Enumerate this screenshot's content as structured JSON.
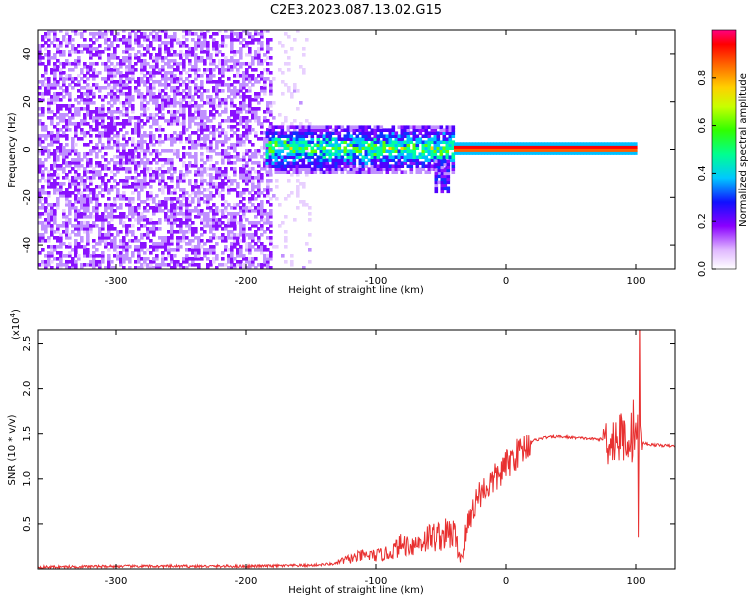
{
  "title": "C2E3.2023.087.13.02.G15",
  "chart_data": [
    {
      "type": "heatmap",
      "xlabel": "Height of straight line (km)",
      "ylabel": "Frequency (Hz)",
      "xlim": [
        -360,
        130
      ],
      "ylim": [
        -50,
        50
      ],
      "xticks": [
        -300,
        -200,
        -100,
        0,
        100
      ],
      "yticks": [
        -40,
        -20,
        0,
        20,
        40
      ],
      "colorbar": {
        "label": "Normalized spectral amplitude",
        "ticks": [
          0.0,
          0.2,
          0.4,
          0.6,
          0.8
        ],
        "range": [
          0,
          1
        ]
      },
      "regions": [
        {
          "x_range": [
            -360,
            -180
          ],
          "freq_range": [
            -50,
            50
          ],
          "amplitude": 0.1,
          "description": "broadband noise"
        },
        {
          "x_range": [
            -180,
            -150
          ],
          "freq_range": [
            -50,
            50
          ],
          "amplitude": 0.03,
          "description": "sparse noise"
        },
        {
          "x_range": [
            -185,
            -40
          ],
          "freq_range": [
            -10,
            10
          ],
          "amplitude": 0.3,
          "description": "signal band"
        },
        {
          "x_range": [
            -55,
            -45
          ],
          "freq_range": [
            -18,
            -5
          ],
          "amplitude": 0.2,
          "description": "signal excursion"
        },
        {
          "x_range": [
            -40,
            100
          ],
          "freq_range": [
            -2,
            2
          ],
          "amplitude": 1.0,
          "description": "strong carrier"
        }
      ]
    },
    {
      "type": "line",
      "xlabel": "Height of straight line (km)",
      "ylabel": "SNR (10 * v/v)",
      "y_multiplier": "(x10^4)",
      "xlim": [
        -360,
        130
      ],
      "ylim": [
        0,
        2.65
      ],
      "xticks": [
        -300,
        -200,
        -100,
        0,
        100
      ],
      "yticks": [
        0.5,
        1.0,
        1.5,
        2.0,
        2.5
      ],
      "color": "#e83030",
      "x": [
        -360,
        -300,
        -250,
        -200,
        -150,
        -130,
        -110,
        -100,
        -90,
        -80,
        -70,
        -60,
        -50,
        -40,
        -35,
        -30,
        -25,
        -20,
        -15,
        -10,
        -5,
        0,
        10,
        20,
        30,
        40,
        50,
        60,
        70,
        80,
        85,
        90,
        95,
        100,
        103,
        105,
        110,
        120,
        130
      ],
      "y": [
        0.02,
        0.03,
        0.03,
        0.03,
        0.04,
        0.06,
        0.12,
        0.12,
        0.14,
        0.22,
        0.22,
        0.28,
        0.3,
        0.32,
        0.1,
        0.45,
        0.7,
        0.85,
        0.9,
        0.98,
        1.05,
        1.15,
        1.3,
        1.42,
        1.46,
        1.47,
        1.46,
        1.45,
        1.44,
        1.44,
        1.45,
        1.46,
        1.45,
        1.46,
        1.42,
        1.4,
        1.38,
        1.37,
        1.36
      ]
    }
  ]
}
